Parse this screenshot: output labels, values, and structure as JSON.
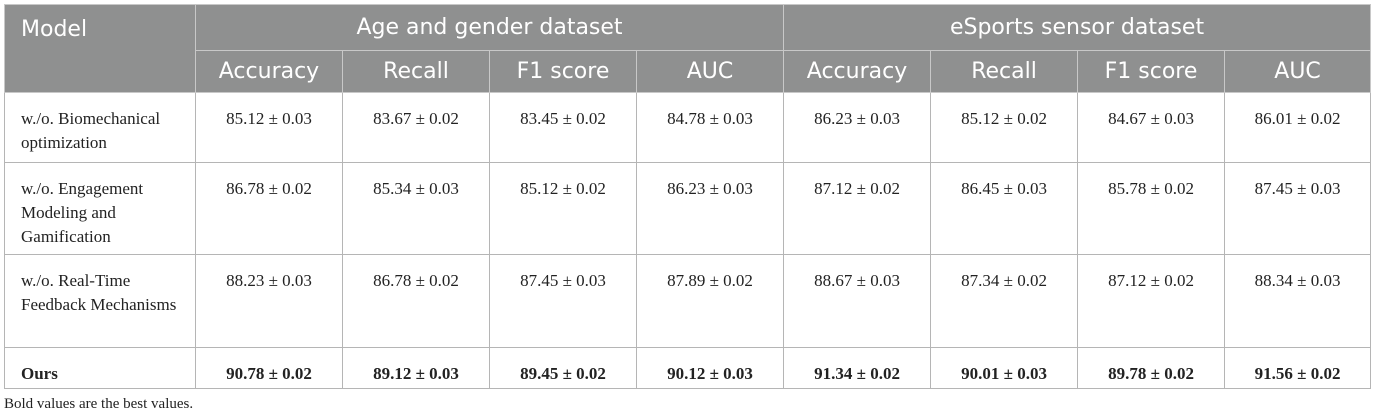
{
  "table": {
    "header_first": "Model",
    "groups": [
      "Age and gender dataset",
      "eSports sensor dataset"
    ],
    "columns": [
      "Accuracy",
      "Recall",
      "F1 score",
      "AUC",
      "Accuracy",
      "Recall",
      "F1 score",
      "AUC"
    ],
    "rows": [
      {
        "model": "w./o. Biomechanical optimization",
        "cells": [
          "85.12 ± 0.03",
          "83.67 ± 0.02",
          "83.45 ± 0.02",
          "84.78 ± 0.03",
          "86.23 ± 0.03",
          "85.12 ± 0.02",
          "84.67 ± 0.03",
          "86.01 ± 0.02"
        ]
      },
      {
        "model": "w./o. Engagement Modeling and Gamification",
        "cells": [
          "86.78 ± 0.02",
          "85.34 ± 0.03",
          "85.12 ± 0.02",
          "86.23 ± 0.03",
          "87.12 ± 0.02",
          "86.45 ± 0.03",
          "85.78 ± 0.02",
          "87.45 ± 0.03"
        ]
      },
      {
        "model": "w./o. Real-Time Feedback Mechanisms",
        "cells": [
          "88.23 ± 0.03",
          "86.78 ± 0.02",
          "87.45 ± 0.03",
          "87.89 ± 0.02",
          "88.67 ± 0.03",
          "87.34 ± 0.02",
          "87.12 ± 0.02",
          "88.34 ± 0.03"
        ]
      },
      {
        "model": "Ours",
        "cells": [
          "90.78 ± 0.02",
          "89.12 ± 0.03",
          "89.45 ± 0.02",
          "90.12 ± 0.03",
          "91.34 ± 0.02",
          "90.01 ± 0.03",
          "89.78 ± 0.02",
          "91.56 ± 0.02"
        ],
        "bold": true
      }
    ],
    "footnote": "Bold values are the best values."
  }
}
